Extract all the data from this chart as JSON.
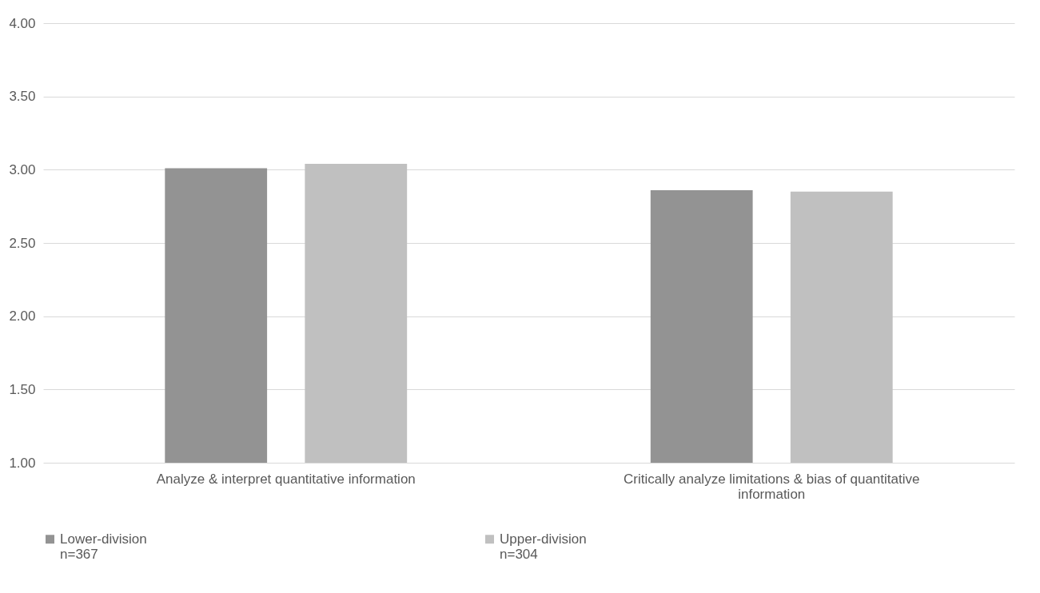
{
  "chart_data": {
    "type": "bar",
    "categories": [
      "Analyze & interpret quantitative information",
      "Critically analyze limitations & bias of quantitative information"
    ],
    "series": [
      {
        "name": "Lower-division\nn=367",
        "color": "#939393",
        "values": [
          3.01,
          2.86
        ]
      },
      {
        "name": "Upper-division\nn=304",
        "color": "#c0c0c0",
        "values": [
          3.04,
          2.85
        ]
      }
    ],
    "ylim": [
      1,
      4
    ],
    "yticks": [
      {
        "value": 1,
        "label": "1.00"
      },
      {
        "value": 1.5,
        "label": "1.50"
      },
      {
        "value": 2,
        "label": "2.00"
      },
      {
        "value": 2.5,
        "label": "2.50"
      },
      {
        "value": 3,
        "label": "3.00"
      },
      {
        "value": 3.5,
        "label": "3.50"
      },
      {
        "value": 4,
        "label": "4.00"
      }
    ],
    "grid": "y",
    "legend": "bottom"
  }
}
